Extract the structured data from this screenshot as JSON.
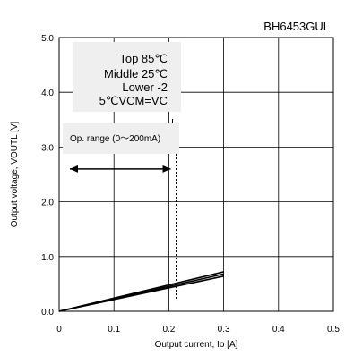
{
  "part_number": "BH6453GUL",
  "chart_data": {
    "type": "line",
    "title": "",
    "xlabel": "Output current, Io [A]",
    "ylabel": "Output voltage, VOUTL [V]",
    "xlim": [
      0,
      0.5
    ],
    "ylim": [
      0,
      5
    ],
    "x_ticks": [
      "0",
      "0.1",
      "0.2",
      "0.3",
      "0.4",
      "0.5"
    ],
    "y_ticks": [
      "0.0",
      "1.0",
      "2.0",
      "3.0",
      "4.0",
      "5.0"
    ],
    "x_tick_values": [
      0,
      0.1,
      0.2,
      0.3,
      0.4,
      0.5
    ],
    "y_tick_values": [
      0,
      1,
      2,
      3,
      4,
      5
    ],
    "grid": true,
    "series": [
      {
        "x": [
          0,
          0.3
        ],
        "y": [
          0,
          0.72
        ]
      },
      {
        "x": [
          0,
          0.3
        ],
        "y": [
          0,
          0.68
        ]
      },
      {
        "x": [
          0,
          0.3
        ],
        "y": [
          0,
          0.64
        ]
      }
    ],
    "legend": [
      "Top 85℃",
      "Middle  25℃",
      "Lower  -2",
      "5℃VCM=VC"
    ],
    "annotation": {
      "text": "Op. range (0～200mA)",
      "arrow_from_x": 0,
      "arrow_to_x": 0.21,
      "arrow_y": 2.6,
      "limit_x": 0.21
    }
  }
}
